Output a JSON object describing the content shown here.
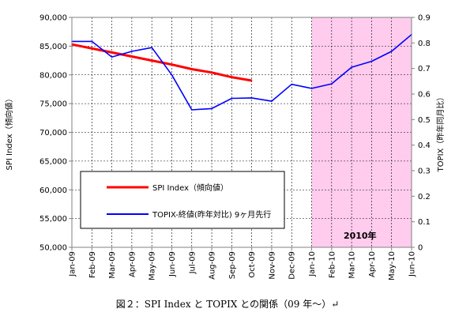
{
  "chart_data": {
    "type": "line",
    "categories": [
      "Jan-09",
      "Feb-09",
      "Mar-09",
      "Apr-09",
      "May-09",
      "Jun-09",
      "Jul-09",
      "Aug-09",
      "Sep-09",
      "Oct-09",
      "Nov-09",
      "Dec-09",
      "Jan-10",
      "Feb-10",
      "Mar-10",
      "Apr-10",
      "May-10",
      "Jun-10"
    ],
    "y_left": {
      "label": "SPI Index（傾向値）",
      "min": 50000,
      "max": 90000,
      "step": 5000,
      "ticks": [
        "50,000",
        "55,000",
        "60,000",
        "65,000",
        "70,000",
        "75,000",
        "80,000",
        "85,000",
        "90,000"
      ]
    },
    "y_right": {
      "label": "TOPIX（昨年同月比）",
      "min": 0,
      "max": 0.9,
      "step": 0.1,
      "ticks": [
        "0",
        "0.1",
        "0.2",
        "0.3",
        "0.4",
        "0.5",
        "0.6",
        "0.7",
        "0.8",
        "0.9"
      ]
    },
    "series": [
      {
        "name": "SPI Index（傾向値）",
        "axis": "left",
        "color": "#ff0000",
        "values": [
          85300,
          84600,
          83900,
          83200,
          82500,
          81800,
          81000,
          80400,
          79600,
          79000,
          null,
          null,
          null,
          null,
          null,
          null,
          null,
          null
        ]
      },
      {
        "name": "TOPIX-終値(昨年対比) 9ヶ月先行",
        "axis": "right",
        "color": "#0000ff",
        "values": [
          0.806,
          0.806,
          0.745,
          0.767,
          0.782,
          0.675,
          0.538,
          0.543,
          0.583,
          0.585,
          0.572,
          0.638,
          0.622,
          0.64,
          0.705,
          0.728,
          0.767,
          0.833
        ]
      }
    ],
    "shaded_region": {
      "from": "Jan-10",
      "to": "Jun-10",
      "label": "2010年",
      "fill": "#ffccee",
      "label_color": "#ff0000"
    },
    "grid": {
      "horizontal": true,
      "vertical": true,
      "style": "dashed"
    },
    "legend": "inside-lower-left"
  },
  "caption": "図２：SPI Index と TOPIX との関係（09 年〜）↵"
}
